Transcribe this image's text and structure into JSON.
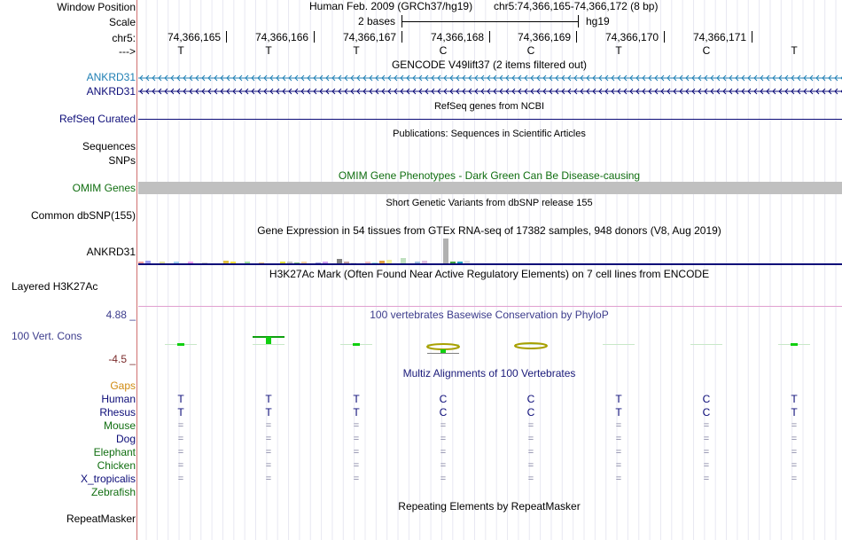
{
  "header": {
    "window_position_label": "Window Position",
    "scale_label": "Scale",
    "chrom_label": "chr5:",
    "strand_label": "--->",
    "assembly_text": "Human Feb. 2009 (GRCh37/hg19)",
    "position_text": "chr5:74,366,165-74,366,172 (8 bp)",
    "scale_text": "2 bases",
    "db_text": "hg19",
    "coordinates": [
      "74,366,165",
      "74,366,166",
      "74,366,167",
      "74,366,168",
      "74,366,169",
      "74,366,170",
      "74,366,171"
    ],
    "bases": [
      "T",
      "T",
      "T",
      "C",
      "C",
      "T",
      "C",
      "T"
    ]
  },
  "tracks": {
    "gencode": {
      "title": "GENCODE V49lift37 (2 items filtered out)",
      "items": [
        "ANKRD31",
        "ANKRD31"
      ],
      "color_1": "#1f7fb4",
      "color_2": "#0c0c78"
    },
    "refseq": {
      "title": "RefSeq genes from NCBI",
      "label": "RefSeq Curated",
      "color": "#0c0c78"
    },
    "publications": {
      "title": "Publications: Sequences in Scientific Articles",
      "labels": [
        "Sequences",
        "SNPs"
      ]
    },
    "omim": {
      "title": "OMIM Gene Phenotypes - Dark Green Can Be Disease-causing",
      "label": "OMIM Genes",
      "color": "#106e10",
      "bar_color": "#c0c0c0"
    },
    "dbsnp": {
      "title": "Short Genetic Variants from dbSNP release 155",
      "label": "Common dbSNP(155)"
    },
    "gtex": {
      "title": "Gene Expression in 54 tissues from GTEx RNA-seq of 17382 samples, 948 donors (V8, Aug 2019)",
      "label": "ANKRD31"
    },
    "h3k27ac": {
      "title": "H3K27Ac Mark (Often Found Near Active Regulatory Elements) on 7 cell lines from ENCODE",
      "label": "Layered H3K27Ac"
    },
    "phylop": {
      "title": "100 vertebrates Basewise Conservation by PhyloP",
      "label": "100 Vert. Cons",
      "max_label": "4.88 _",
      "min_label": "-4.5 _",
      "title_color": "#3c3c8c",
      "max_color": "#3c3c8c",
      "min_color": "#7a2a2a"
    },
    "multiz": {
      "title": "Multiz Alignments of 100 Vertebrates",
      "title_color": "#1a1a7a",
      "gaps_label": "Gaps",
      "gaps_color": "#d08a10",
      "species": [
        {
          "name": "Human",
          "color": "#0c0c78"
        },
        {
          "name": "Rhesus",
          "color": "#0c0c78"
        },
        {
          "name": "Mouse",
          "color": "#106e10"
        },
        {
          "name": "Dog",
          "color": "#0c0c78"
        },
        {
          "name": "Elephant",
          "color": "#106e10"
        },
        {
          "name": "Chicken",
          "color": "#106e10"
        },
        {
          "name": "X_tropicalis",
          "color": "#0c0c78"
        },
        {
          "name": "Zebrafish",
          "color": "#106e10"
        }
      ],
      "human_seq": [
        "T",
        "T",
        "T",
        "C",
        "C",
        "T",
        "C",
        "T"
      ],
      "rhesus_seq": [
        "T",
        "T",
        "T",
        "C",
        "C",
        "T",
        "C",
        "T"
      ],
      "eq_symbol": "="
    },
    "repeatmasker": {
      "title": "Repeating Elements by RepeatMasker",
      "label": "RepeatMasker"
    }
  }
}
